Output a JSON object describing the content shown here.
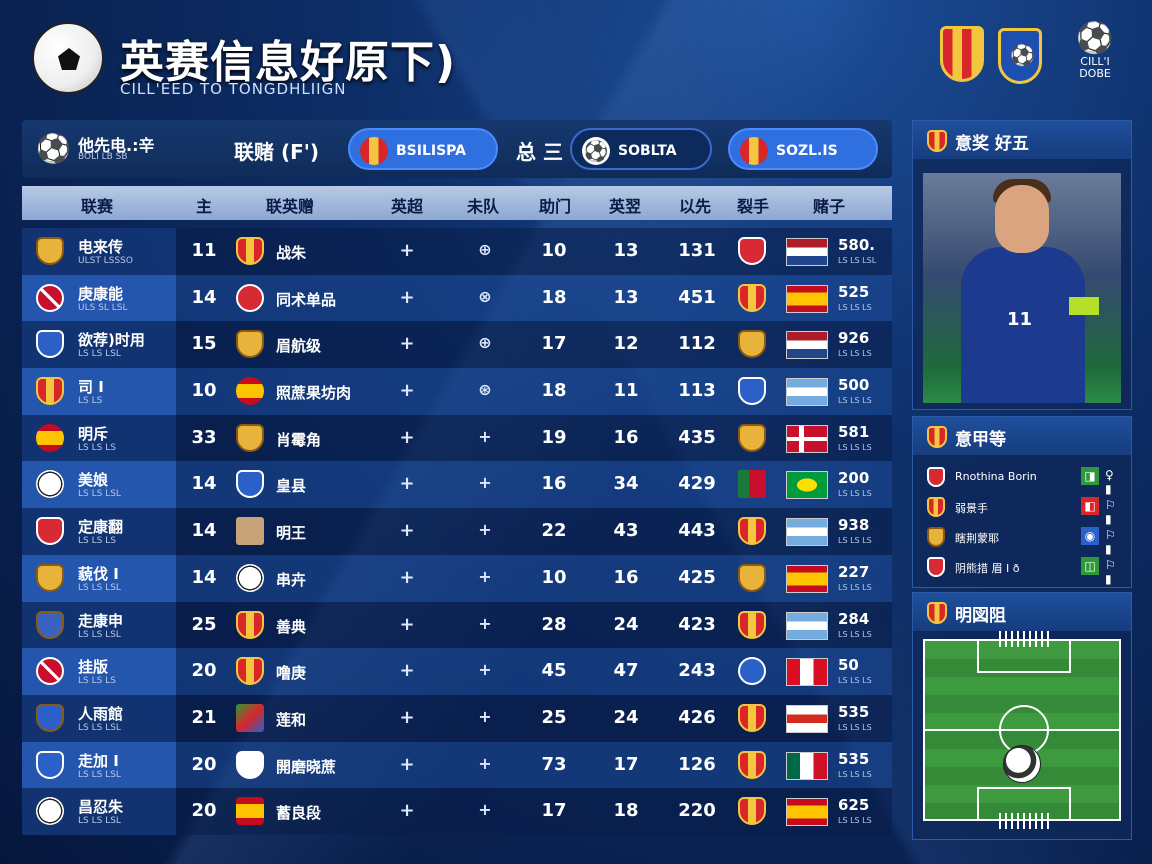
{
  "header": {
    "title": "英赛信息好原下)",
    "subtitle": "CILL'EED TO TONGDHLIIGN",
    "cl_top": "CILL'I",
    "cl_bottom": "DOBE"
  },
  "filter": {
    "label": "他先电.:辛",
    "sub": "BOLI LB SB",
    "season": "联赌 (F')",
    "pill1": "BSILISPA",
    "mid": "总 三",
    "pill2": "SOBLTA",
    "pill3": "SOZL.IS"
  },
  "columns": [
    "联赛",
    "主",
    "联英赠",
    "英超",
    "未队",
    "助门",
    "英翌",
    "以先",
    "裂手",
    "赌子"
  ],
  "rows": [
    {
      "club": "电来传",
      "sub": "ULST LSSSO",
      "num": "11",
      "opp": "战朱",
      "plus": "+",
      "ico": "⊕",
      "a": "10",
      "b": "13",
      "c": "131",
      "score": "580.",
      "score_sub": "LS LS LSL"
    },
    {
      "club": "庚康能",
      "sub": "ULS SL LSL",
      "num": "14",
      "opp": "同术单品",
      "plus": "+",
      "ico": "⊗",
      "a": "18",
      "b": "13",
      "c": "451",
      "score": "525",
      "score_sub": "LS LS LS"
    },
    {
      "club": "欲荐)时用",
      "sub": "LS LS LSL",
      "num": "15",
      "opp": "眉航级",
      "plus": "+",
      "ico": "⊕",
      "a": "17",
      "b": "12",
      "c": "112",
      "score": "926",
      "score_sub": "LS LS LS"
    },
    {
      "club": "司 I",
      "sub": "LS LS",
      "num": "10",
      "opp": "照蔗果坊肉",
      "plus": "+",
      "ico": "⊛",
      "a": "18",
      "b": "11",
      "c": "113",
      "score": "500",
      "score_sub": "LS LS LS"
    },
    {
      "club": "明斥",
      "sub": "LS LS LS",
      "num": "33",
      "opp": "肖霉角",
      "plus": "+",
      "ico": "+",
      "a": "19",
      "b": "16",
      "c": "435",
      "score": "581",
      "score_sub": "LS LS LS"
    },
    {
      "club": "美娘",
      "sub": "LS LS LSL",
      "num": "14",
      "opp": "皇县",
      "plus": "+",
      "ico": "+",
      "a": "16",
      "b": "34",
      "c": "429",
      "score": "200",
      "score_sub": "LS LS LS"
    },
    {
      "club": "定康翻",
      "sub": "LS LS LS",
      "num": "14",
      "opp": "明王",
      "plus": "+",
      "ico": "+",
      "a": "22",
      "b": "43",
      "c": "443",
      "score": "938",
      "score_sub": "LS LS LS"
    },
    {
      "club": "藐伐 I",
      "sub": "LS LS LSL",
      "num": "14",
      "opp": "串卉",
      "plus": "+",
      "ico": "+",
      "a": "10",
      "b": "16",
      "c": "425",
      "score": "227",
      "score_sub": "LS LS LS"
    },
    {
      "club": "走康申",
      "sub": "LS LS LSL",
      "num": "25",
      "opp": "善典",
      "plus": "+",
      "ico": "+",
      "a": "28",
      "b": "24",
      "c": "423",
      "score": "284",
      "score_sub": "LS LS LS"
    },
    {
      "club": "挂版",
      "sub": "LS LS LS",
      "num": "20",
      "opp": "噜庚",
      "plus": "+",
      "ico": "+",
      "a": "45",
      "b": "47",
      "c": "243",
      "score": "50",
      "score_sub": "LS LS LS"
    },
    {
      "club": "人雨館",
      "sub": "LS LS LSL",
      "num": "21",
      "opp": "莲和",
      "plus": "+",
      "ico": "+",
      "a": "25",
      "b": "24",
      "c": "426",
      "score": "535",
      "score_sub": "LS LS LS"
    },
    {
      "club": "走加 I",
      "sub": "LS LS LSL",
      "num": "20",
      "opp": "開磨晓蔗",
      "plus": "+",
      "ico": "+",
      "a": "73",
      "b": "17",
      "c": "126",
      "score": "535",
      "score_sub": "LS LS LS"
    },
    {
      "club": "昌忍朱",
      "sub": "LS LS LSL",
      "num": "20",
      "opp": "蓄良段",
      "plus": "+",
      "ico": "+",
      "a": "17",
      "b": "18",
      "c": "220",
      "score": "625",
      "score_sub": "LS LS LS"
    }
  ],
  "panels": {
    "p1_title": "意奖 好五",
    "p1_shirt_num": "11",
    "p2_title": "意甲等",
    "p2_items": [
      {
        "label": "Rnothina Borin",
        "ico": "◨",
        "ico2": "♀ ▮"
      },
      {
        "label": "弱景手",
        "ico": "◧",
        "ico2": "⚐ ▮"
      },
      {
        "label": "瞎荆蒙耶",
        "ico": "◉",
        "ico2": "⚐ ▮"
      },
      {
        "label": "阴熊措 眉 I ð",
        "ico": "◫",
        "ico2": "⚐ ▮"
      }
    ],
    "p3_title": "明図阻"
  },
  "colors": {
    "accent": "#2f6fe0",
    "bg": "#0d2d66"
  }
}
